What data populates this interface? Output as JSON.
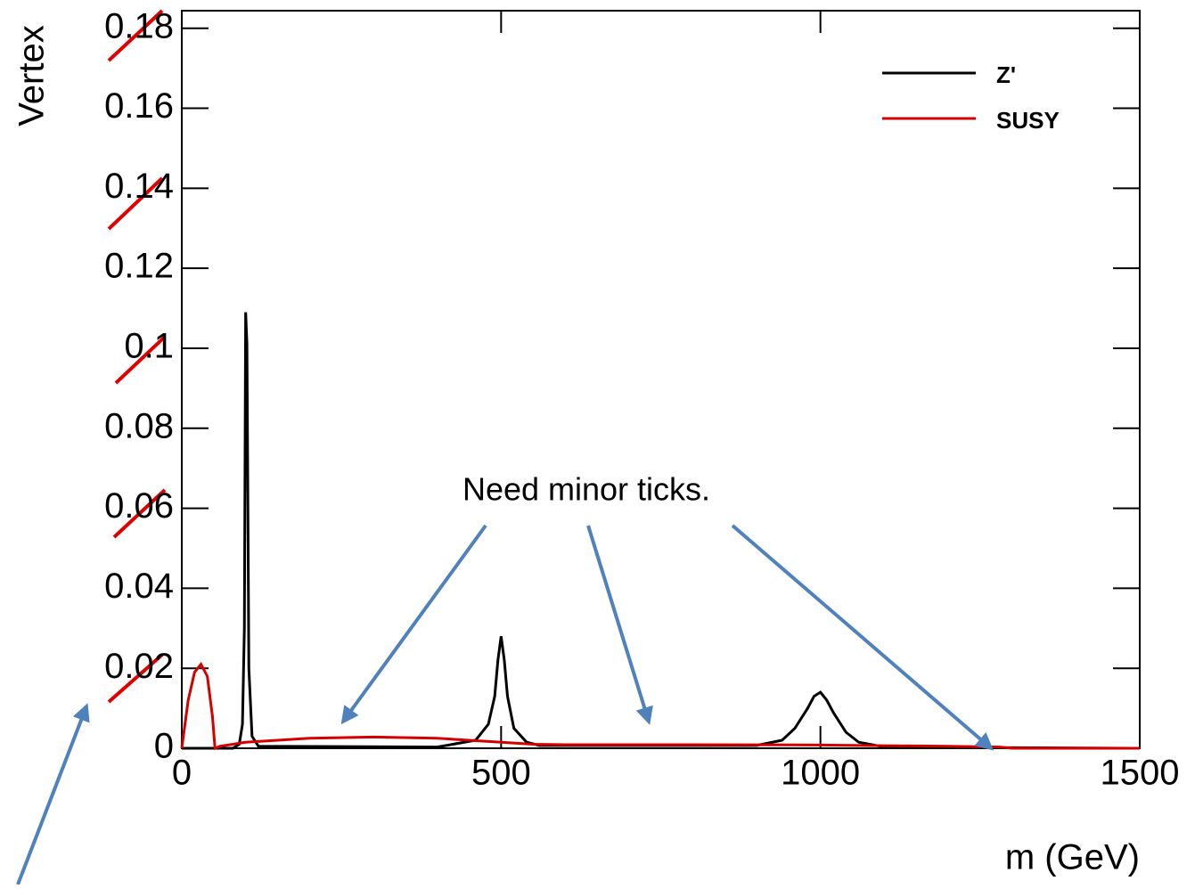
{
  "chart_data": {
    "type": "line",
    "x_label": "m (GeV)",
    "y_label": "Vertex",
    "annotation": "Need minor ticks.",
    "xlim": [
      0,
      1500
    ],
    "xticks": [
      0,
      500,
      1000,
      1500
    ],
    "ylim": [
      0,
      0.1844
    ],
    "yticks": [
      0,
      0.02,
      0.04,
      0.06,
      0.08,
      0.1,
      0.12,
      0.14,
      0.16,
      0.18
    ],
    "legend": "upper right",
    "series": [
      {
        "name": "Z'",
        "color": "#000000",
        "x": [
          0,
          80,
          90,
          95,
          98,
          100,
          102,
          105,
          110,
          120,
          400,
          460,
          480,
          490,
          495,
          500,
          505,
          510,
          520,
          540,
          560,
          900,
          940,
          960,
          980,
          990,
          1000,
          1010,
          1020,
          1040,
          1060,
          1100,
          1500
        ],
        "values": [
          0,
          0,
          0.001,
          0.006,
          0.03,
          0.109,
          0.101,
          0.02,
          0.003,
          0.0005,
          0.0003,
          0.002,
          0.006,
          0.013,
          0.022,
          0.028,
          0.022,
          0.013,
          0.005,
          0.0015,
          0.0007,
          0.0007,
          0.002,
          0.005,
          0.01,
          0.013,
          0.014,
          0.012,
          0.009,
          0.004,
          0.0015,
          0.0003,
          0
        ]
      },
      {
        "name": "SUSY",
        "color": "#d40000",
        "x": [
          0,
          10,
          20,
          30,
          40,
          48,
          52,
          60,
          100,
          200,
          300,
          400,
          500,
          550,
          600,
          800,
          1000,
          1200,
          1280,
          1300,
          1500
        ],
        "values": [
          0,
          0.012,
          0.019,
          0.021,
          0.018,
          0.008,
          0,
          0.0005,
          0.0015,
          0.0025,
          0.0028,
          0.0025,
          0.0015,
          0.001,
          0.0009,
          0.0009,
          0.0008,
          0.0005,
          0.0003,
          0,
          0
        ]
      }
    ]
  }
}
